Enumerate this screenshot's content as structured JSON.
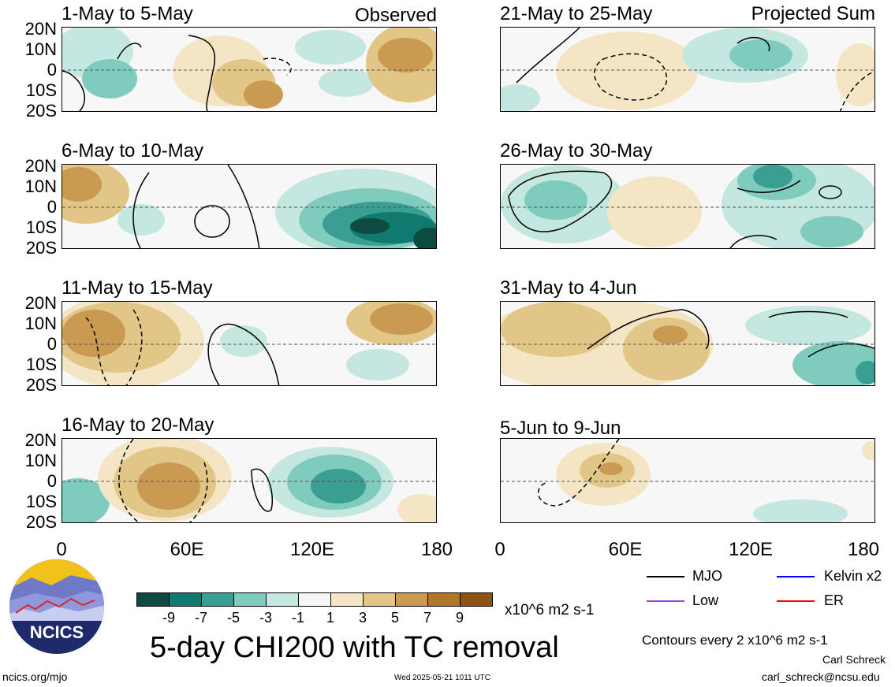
{
  "panels": [
    {
      "title": "1-May to 5-May",
      "corner": "Observed"
    },
    {
      "title": "6-May to 10-May",
      "corner": ""
    },
    {
      "title": "11-May to 15-May",
      "corner": ""
    },
    {
      "title": "16-May to 20-May",
      "corner": ""
    },
    {
      "title": "21-May to 25-May",
      "corner": "Projected Sum"
    },
    {
      "title": "26-May to 30-May",
      "corner": ""
    },
    {
      "title": "31-May to 4-Jun",
      "corner": ""
    },
    {
      "title": "5-Jun to 9-Jun",
      "corner": ""
    }
  ],
  "lat_labels": [
    "20N",
    "10N",
    "0",
    "10S",
    "20S"
  ],
  "lon_labels": [
    "0",
    "60E",
    "120E",
    "180"
  ],
  "colorbar": {
    "colors": [
      "#0d4a40",
      "#117a70",
      "#3a9e92",
      "#7fcbbe",
      "#c4e8e0",
      "#f7f7f7",
      "#f4e6c4",
      "#e2c688",
      "#ca9a52",
      "#b0762c",
      "#8c5314",
      "#5c3707"
    ],
    "labels": [
      "-9",
      "-7",
      "-5",
      "-3",
      "-1",
      "1",
      "3",
      "5",
      "7",
      "9"
    ],
    "units": "x10^6 m2 s-1"
  },
  "legend": {
    "items": [
      {
        "name": "MJO",
        "color": "#000000"
      },
      {
        "name": "Kelvin x2",
        "color": "#0000ff"
      },
      {
        "name": "Low",
        "color": "#a040e0"
      },
      {
        "name": "ER",
        "color": "#ff0000"
      }
    ],
    "contour_note": "Contours every 2 x10^6 m2 s-1"
  },
  "logo_text": "NCICS",
  "main_title": "5-day CHI200 with TC removal",
  "footer": {
    "url": "ncics.org/mjo",
    "timestamp": "Wed 2025-05-21 1011 UTC",
    "author": "Carl Schreck",
    "email": "carl_schreck@ncsu.edu"
  }
}
